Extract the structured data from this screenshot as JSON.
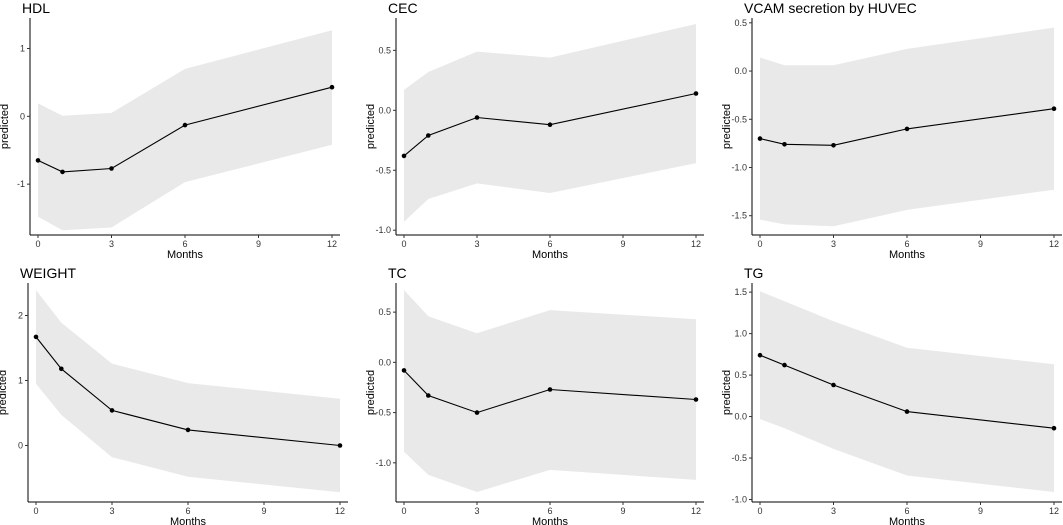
{
  "chart_data": [
    {
      "type": "line",
      "title": "HDL",
      "xlabel": "Months",
      "ylabel": "predicted",
      "xlim": [
        0,
        12
      ],
      "ylim": [
        -1.75,
        1.45
      ],
      "xticks": [
        0,
        3,
        6,
        9,
        12
      ],
      "yticks": [
        -1,
        0,
        1
      ],
      "ytick_labels": [
        "-1",
        "0",
        "1"
      ],
      "x": [
        0,
        1,
        3,
        6,
        12
      ],
      "y": [
        -0.65,
        -0.82,
        -0.77,
        -0.13,
        0.43
      ],
      "ci_lower": [
        -1.48,
        -1.68,
        -1.64,
        -0.97,
        -0.42
      ],
      "ci_upper": [
        0.19,
        0.01,
        0.05,
        0.7,
        1.27
      ]
    },
    {
      "type": "line",
      "title": "CEC",
      "xlabel": "Months",
      "ylabel": "predicted",
      "xlim": [
        0,
        12
      ],
      "ylim": [
        -1.04,
        0.77
      ],
      "xticks": [
        0,
        3,
        6,
        9,
        12
      ],
      "yticks": [
        -1.0,
        -0.5,
        0.0,
        0.5
      ],
      "ytick_labels": [
        "-1.0",
        "-0.5",
        "0.0",
        "0.5"
      ],
      "x": [
        0,
        1,
        3,
        6,
        12
      ],
      "y": [
        -0.38,
        -0.21,
        -0.06,
        -0.12,
        0.14
      ],
      "ci_lower": [
        -0.93,
        -0.74,
        -0.61,
        -0.69,
        -0.44
      ],
      "ci_upper": [
        0.17,
        0.32,
        0.49,
        0.44,
        0.72
      ]
    },
    {
      "type": "line",
      "title": "VCAM secretion by HUVEC",
      "xlabel": "Months",
      "ylabel": "predicted",
      "xlim": [
        0,
        12
      ],
      "ylim": [
        -1.7,
        0.55
      ],
      "xticks": [
        0,
        3,
        6,
        9,
        12
      ],
      "yticks": [
        -1.5,
        -1.0,
        -0.5,
        0.0,
        0.5
      ],
      "ytick_labels": [
        "-1.5",
        "-1.0",
        "-0.5",
        "0.0",
        "0.5"
      ],
      "x": [
        0,
        1,
        3,
        6,
        12
      ],
      "y": [
        -0.7,
        -0.76,
        -0.77,
        -0.6,
        -0.39
      ],
      "ci_lower": [
        -1.54,
        -1.59,
        -1.61,
        -1.44,
        -1.23
      ],
      "ci_upper": [
        0.14,
        0.06,
        0.06,
        0.23,
        0.45
      ]
    },
    {
      "type": "line",
      "title": "WEIGHT",
      "xlabel": "Months",
      "ylabel": "predicted",
      "xlim": [
        0,
        12
      ],
      "ylim": [
        -0.87,
        2.5
      ],
      "xticks": [
        0,
        3,
        6,
        9,
        12
      ],
      "yticks": [
        0,
        1,
        2
      ],
      "ytick_labels": [
        "0",
        "1",
        "2"
      ],
      "x": [
        0,
        1,
        3,
        6,
        12
      ],
      "y": [
        1.67,
        1.18,
        0.54,
        0.24,
        0.0
      ],
      "ci_lower": [
        0.95,
        0.47,
        -0.18,
        -0.48,
        -0.72
      ],
      "ci_upper": [
        2.39,
        1.89,
        1.26,
        0.96,
        0.72
      ]
    },
    {
      "type": "line",
      "title": "TC",
      "xlabel": "Months",
      "ylabel": "predicted",
      "xlim": [
        0,
        12
      ],
      "ylim": [
        -1.39,
        0.79
      ],
      "xticks": [
        0,
        3,
        6,
        9,
        12
      ],
      "yticks": [
        -1.0,
        -0.5,
        0.0,
        0.5
      ],
      "ytick_labels": [
        "-1.0",
        "-0.5",
        "0.0",
        "0.5"
      ],
      "x": [
        0,
        1,
        3,
        6,
        12
      ],
      "y": [
        -0.08,
        -0.33,
        -0.5,
        -0.27,
        -0.37
      ],
      "ci_lower": [
        -0.89,
        -1.12,
        -1.29,
        -1.07,
        -1.17
      ],
      "ci_upper": [
        0.72,
        0.46,
        0.29,
        0.52,
        0.43
      ]
    },
    {
      "type": "line",
      "title": "TG",
      "xlabel": "Months",
      "ylabel": "predicted",
      "xlim": [
        0,
        12
      ],
      "ylim": [
        -1.03,
        1.61
      ],
      "xticks": [
        0,
        3,
        6,
        9,
        12
      ],
      "yticks": [
        -1.0,
        -0.5,
        0.0,
        0.5,
        1.0,
        1.5
      ],
      "ytick_labels": [
        "-1.0",
        "-0.5",
        "0.0",
        "0.5",
        "1.0",
        "1.5"
      ],
      "x": [
        0,
        1,
        3,
        6,
        12
      ],
      "y": [
        0.74,
        0.62,
        0.38,
        0.06,
        -0.14
      ],
      "ci_lower": [
        -0.03,
        -0.14,
        -0.39,
        -0.71,
        -0.91
      ],
      "ci_upper": [
        1.51,
        1.39,
        1.15,
        0.83,
        0.63
      ]
    }
  ],
  "colors": {
    "ribbon": "#e9e9e9",
    "line": "#000000",
    "axis": "#000000"
  }
}
